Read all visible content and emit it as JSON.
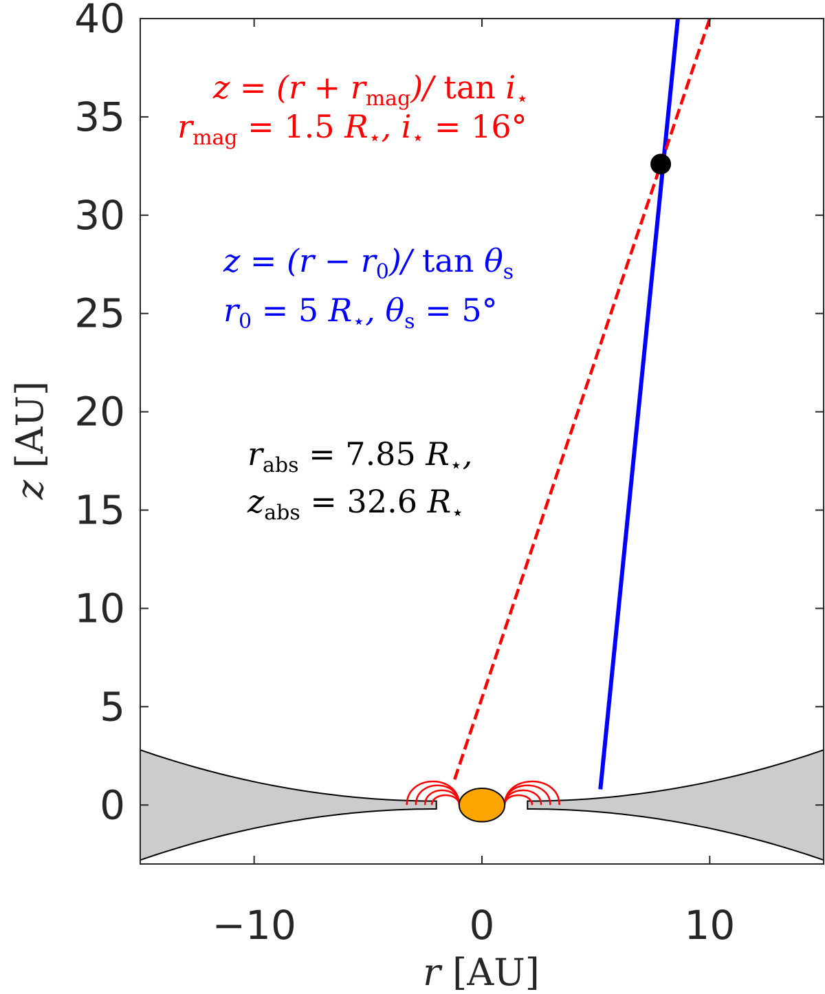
{
  "chart_data": {
    "type": "line",
    "xlabel": "r [AU]",
    "ylabel": "z [AU]",
    "xlim": [
      -15,
      15
    ],
    "ylim": [
      -3,
      40
    ],
    "xticks": [
      "−10",
      "0",
      "10"
    ],
    "xtick_values": [
      -10,
      0,
      10
    ],
    "yticks": [
      "0",
      "5",
      "10",
      "15",
      "20",
      "25",
      "30",
      "35",
      "40"
    ],
    "ytick_values": [
      0,
      5,
      10,
      15,
      20,
      25,
      30,
      35,
      40
    ],
    "grid": false,
    "series": [
      {
        "kind": "solid",
        "color": "#0000ff",
        "points": [
          [
            5.2,
            0.8
          ],
          [
            8.6,
            40
          ]
        ]
      },
      {
        "kind": "dashed",
        "color": "#ff0000",
        "points": [
          [
            -1.2,
            1.3
          ],
          [
            10.0,
            40
          ]
        ]
      }
    ],
    "intersection_point": {
      "x": 7.85,
      "y": 32.6,
      "color": "#000000"
    },
    "disk": {
      "fill": "#cccccc",
      "inner_edge": 2.0,
      "outer_edge": 15,
      "half_thickness_inner": 0.2,
      "half_thickness_outer": 2.8
    },
    "star": {
      "x": 0,
      "y": 0,
      "radius": 1.0,
      "color": "#ffa500"
    },
    "magnetic_loops": {
      "color": "#ff0000",
      "left": [
        {
          "from": -3.3,
          "to": -1.0,
          "height": 1.2
        },
        {
          "from": -2.9,
          "to": -1.0,
          "height": 1.0
        },
        {
          "from": -2.5,
          "to": -1.0,
          "height": 0.75
        },
        {
          "from": -2.2,
          "to": -1.0,
          "height": 0.5
        }
      ],
      "right": [
        {
          "from": 1.0,
          "to": 3.4,
          "height": 1.2
        },
        {
          "from": 1.0,
          "to": 3.0,
          "height": 1.0
        },
        {
          "from": 1.0,
          "to": 2.6,
          "height": 0.75
        },
        {
          "from": 1.0,
          "to": 2.2,
          "height": 0.5
        }
      ]
    },
    "annotations": {
      "red_line1": "z = (r + r_mag)/ tan i⋆",
      "red_line2": "r_mag = 1.5 R⋆, i⋆ = 16°",
      "blue_line1": "z = (r − r_0)/ tan θ_s",
      "blue_line2": "r_0 = 5 R⋆, θ_s = 5°",
      "black_line1": "r_abs = 7.85 R⋆,",
      "black_line2": "z_abs = 32.6 R⋆"
    }
  }
}
